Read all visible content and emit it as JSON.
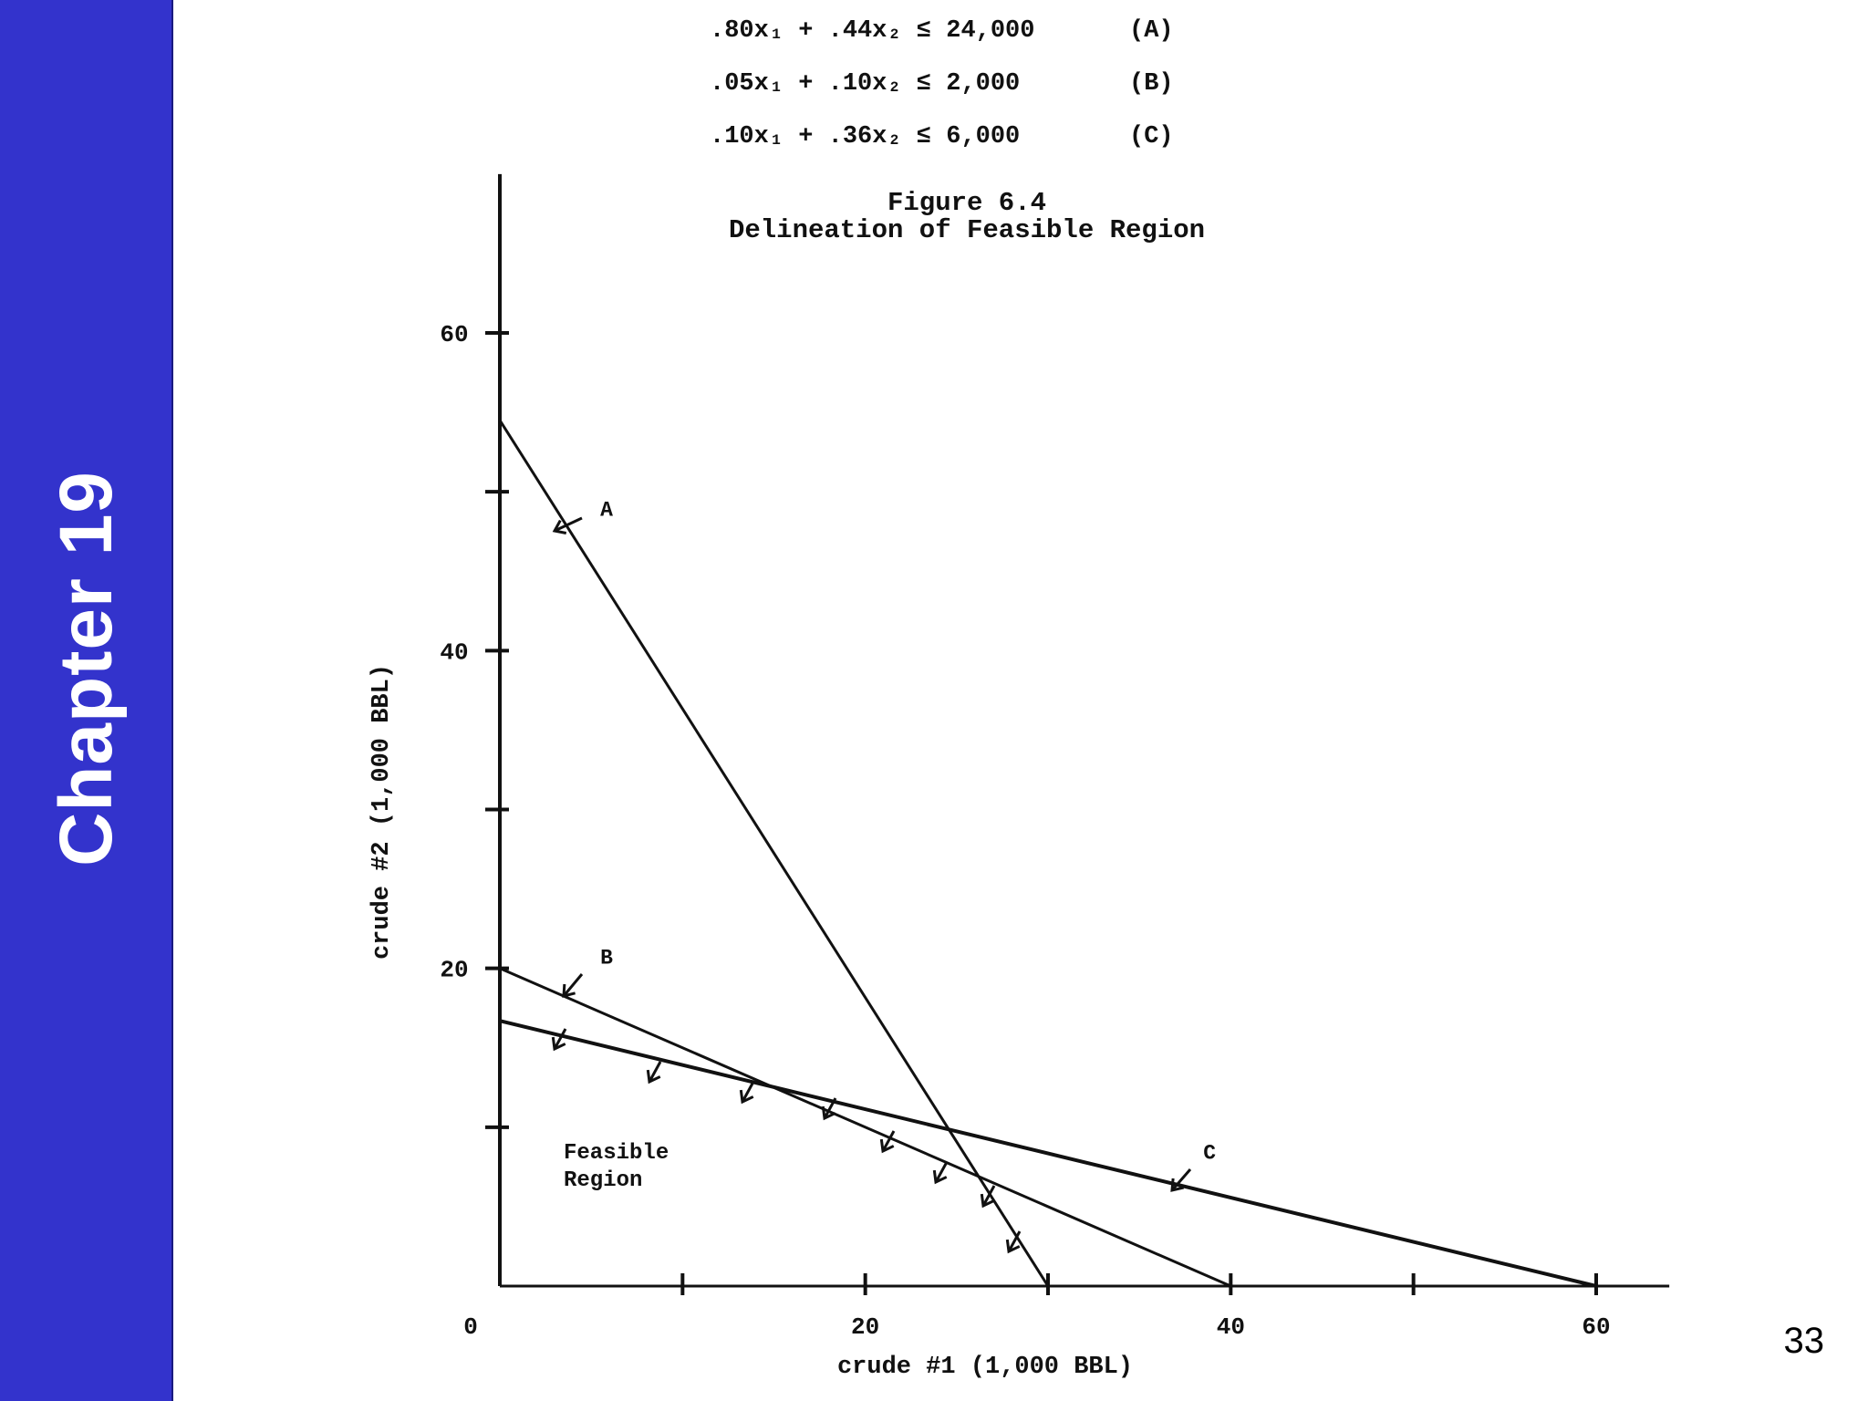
{
  "sidebar": {
    "title": "Chapter 19"
  },
  "page_number": "33",
  "equations": [
    {
      "lhs": ".80x₁ + .44x₂ ≤ 24,000",
      "label": "(A)"
    },
    {
      "lhs": ".05x₁ + .10x₂ ≤ 2,000",
      "label": "(B)"
    },
    {
      "lhs": ".10x₁ + .36x₂ ≤ 6,000",
      "label": "(C)"
    }
  ],
  "chart_data": {
    "type": "line",
    "title": "Figure 6.4",
    "subtitle": "Delineation of Feasible Region",
    "xlabel": "crude #1 (1,000 BBL)",
    "ylabel": "crude #2 (1,000 BBL)",
    "xlim": [
      0,
      64
    ],
    "ylim": [
      0,
      70
    ],
    "x_tick_values": [
      10,
      20,
      30,
      40,
      50,
      60
    ],
    "x_tick_labels": [
      "0",
      "20",
      "40",
      "60"
    ],
    "x_tick_label_values": [
      0,
      20,
      40,
      60
    ],
    "y_tick_values": [
      10,
      20,
      30,
      40,
      50,
      60
    ],
    "y_tick_labels": [
      "20",
      "40",
      "60"
    ],
    "y_tick_label_values": [
      20,
      40,
      60
    ],
    "series": [
      {
        "name": "A",
        "x": [
          0,
          30
        ],
        "y": [
          54.5,
          0
        ]
      },
      {
        "name": "B",
        "x": [
          0,
          40
        ],
        "y": [
          20,
          0
        ]
      },
      {
        "name": "C",
        "x": [
          0,
          60
        ],
        "y": [
          16.7,
          0
        ]
      }
    ],
    "annotations": [
      {
        "text": "A",
        "x": 5.5,
        "y": 48.5
      },
      {
        "text": "B",
        "x": 5.5,
        "y": 20.3
      },
      {
        "text": "C",
        "x": 38.5,
        "y": 8
      },
      {
        "text": "Feasible Region",
        "x": 3.5,
        "y": 8.2
      }
    ],
    "region_label": [
      "Feasible",
      "Region"
    ]
  }
}
